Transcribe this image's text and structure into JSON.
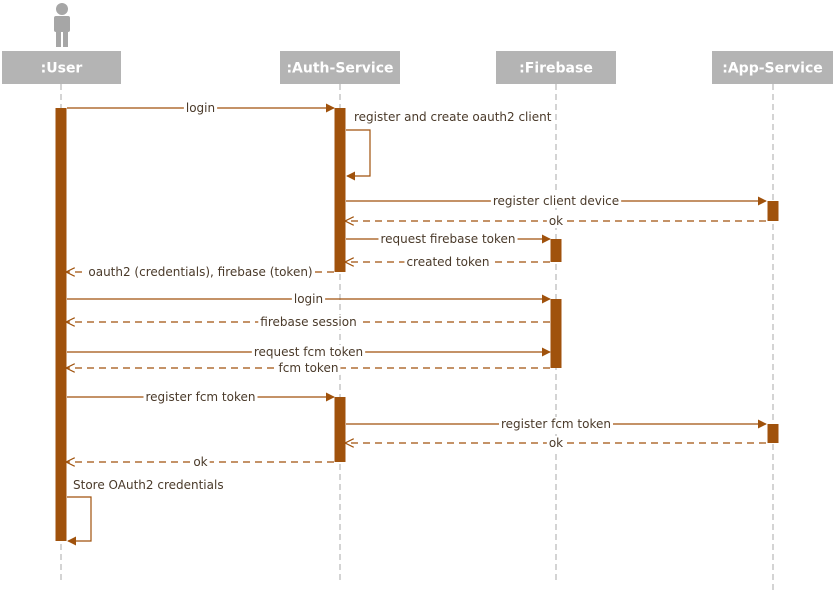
{
  "colors": {
    "accent": "#A0520C",
    "participant_bg": "#B4B4B4",
    "participant_text": "#FFFFFF",
    "lifeline": "#AAAAAA",
    "label_text": "#4A3A2A"
  },
  "actor_icon": "person-icon",
  "participants": [
    {
      "id": "user",
      "label": ":User"
    },
    {
      "id": "auth",
      "label": ":Auth-Service"
    },
    {
      "id": "firebase",
      "label": ":Firebase"
    },
    {
      "id": "app",
      "label": ":App-Service"
    }
  ],
  "messages": [
    {
      "id": "login-1",
      "label": "login",
      "from": "user",
      "to": "auth",
      "type": "sync"
    },
    {
      "id": "self-register",
      "label": "register and create oauth2 client",
      "from": "auth",
      "to": "auth",
      "type": "self"
    },
    {
      "id": "register-device",
      "label": "register client device",
      "from": "auth",
      "to": "app",
      "type": "sync"
    },
    {
      "id": "ok-1",
      "label": "ok",
      "from": "app",
      "to": "auth",
      "type": "return"
    },
    {
      "id": "request-firebase-token",
      "label": "request firebase token",
      "from": "auth",
      "to": "firebase",
      "type": "sync"
    },
    {
      "id": "created-token",
      "label": "created token",
      "from": "firebase",
      "to": "auth",
      "type": "return"
    },
    {
      "id": "oauth2-credentials",
      "label": "oauth2 (credentials), firebase (token)",
      "from": "auth",
      "to": "user",
      "type": "return"
    },
    {
      "id": "login-2",
      "label": "login",
      "from": "user",
      "to": "firebase",
      "type": "sync"
    },
    {
      "id": "firebase-session",
      "label": "firebase session",
      "from": "firebase",
      "to": "user",
      "type": "return"
    },
    {
      "id": "request-fcm-token",
      "label": "request fcm token",
      "from": "user",
      "to": "firebase",
      "type": "sync"
    },
    {
      "id": "fcm-token",
      "label": "fcm token",
      "from": "firebase",
      "to": "user",
      "type": "return"
    },
    {
      "id": "register-fcm-token-1",
      "label": "register fcm token",
      "from": "user",
      "to": "auth",
      "type": "sync"
    },
    {
      "id": "register-fcm-token-2",
      "label": "register fcm token",
      "from": "auth",
      "to": "app",
      "type": "sync"
    },
    {
      "id": "ok-2",
      "label": "ok",
      "from": "app",
      "to": "auth",
      "type": "return"
    },
    {
      "id": "ok-3",
      "label": "ok",
      "from": "auth",
      "to": "user",
      "type": "return"
    },
    {
      "id": "self-store",
      "label": "Store OAuth2 credentials",
      "from": "user",
      "to": "user",
      "type": "self"
    }
  ]
}
